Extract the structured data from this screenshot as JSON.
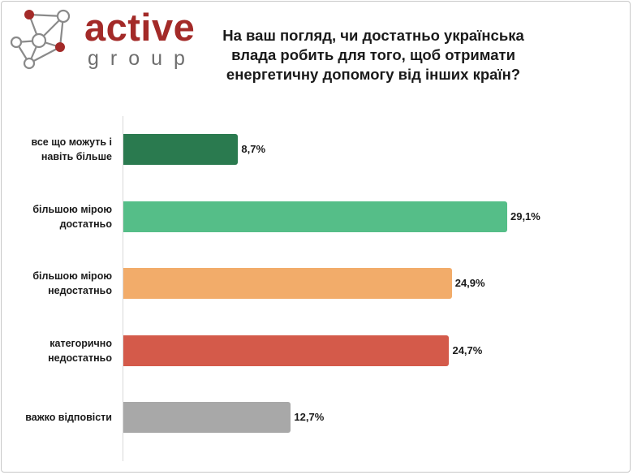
{
  "logo": {
    "word": "active",
    "sub": "group"
  },
  "title": "На ваш погляд, чи достатньо українська влада робить для того, щоб отримати енергетичну допомогу від інших країн?",
  "colors": {
    "brand": "#a32a28",
    "bars": [
      "#2a7a4f",
      "#55be88",
      "#f2ac6a",
      "#d45a4a",
      "#a8a8a8"
    ]
  },
  "chart_data": {
    "type": "bar",
    "orientation": "horizontal",
    "title": "На ваш погляд, чи достатньо українська влада робить для того, щоб отримати енергетичну допомогу від інших країн?",
    "categories": [
      [
        "все що можуть і",
        "навіть більше"
      ],
      [
        "більшою мірою",
        "достатньо"
      ],
      [
        "більшою мірою",
        "недостатньо"
      ],
      [
        "категорично",
        "недостатньо"
      ],
      [
        "важко відповісти"
      ]
    ],
    "values": [
      8.7,
      29.1,
      24.9,
      24.7,
      12.7
    ],
    "value_labels": [
      "8,7%",
      "29,1%",
      "24,9%",
      "24,7%",
      "12,7%"
    ],
    "unit": "%",
    "xlim": [
      0,
      31.5
    ],
    "grid": false,
    "legend": "none"
  }
}
